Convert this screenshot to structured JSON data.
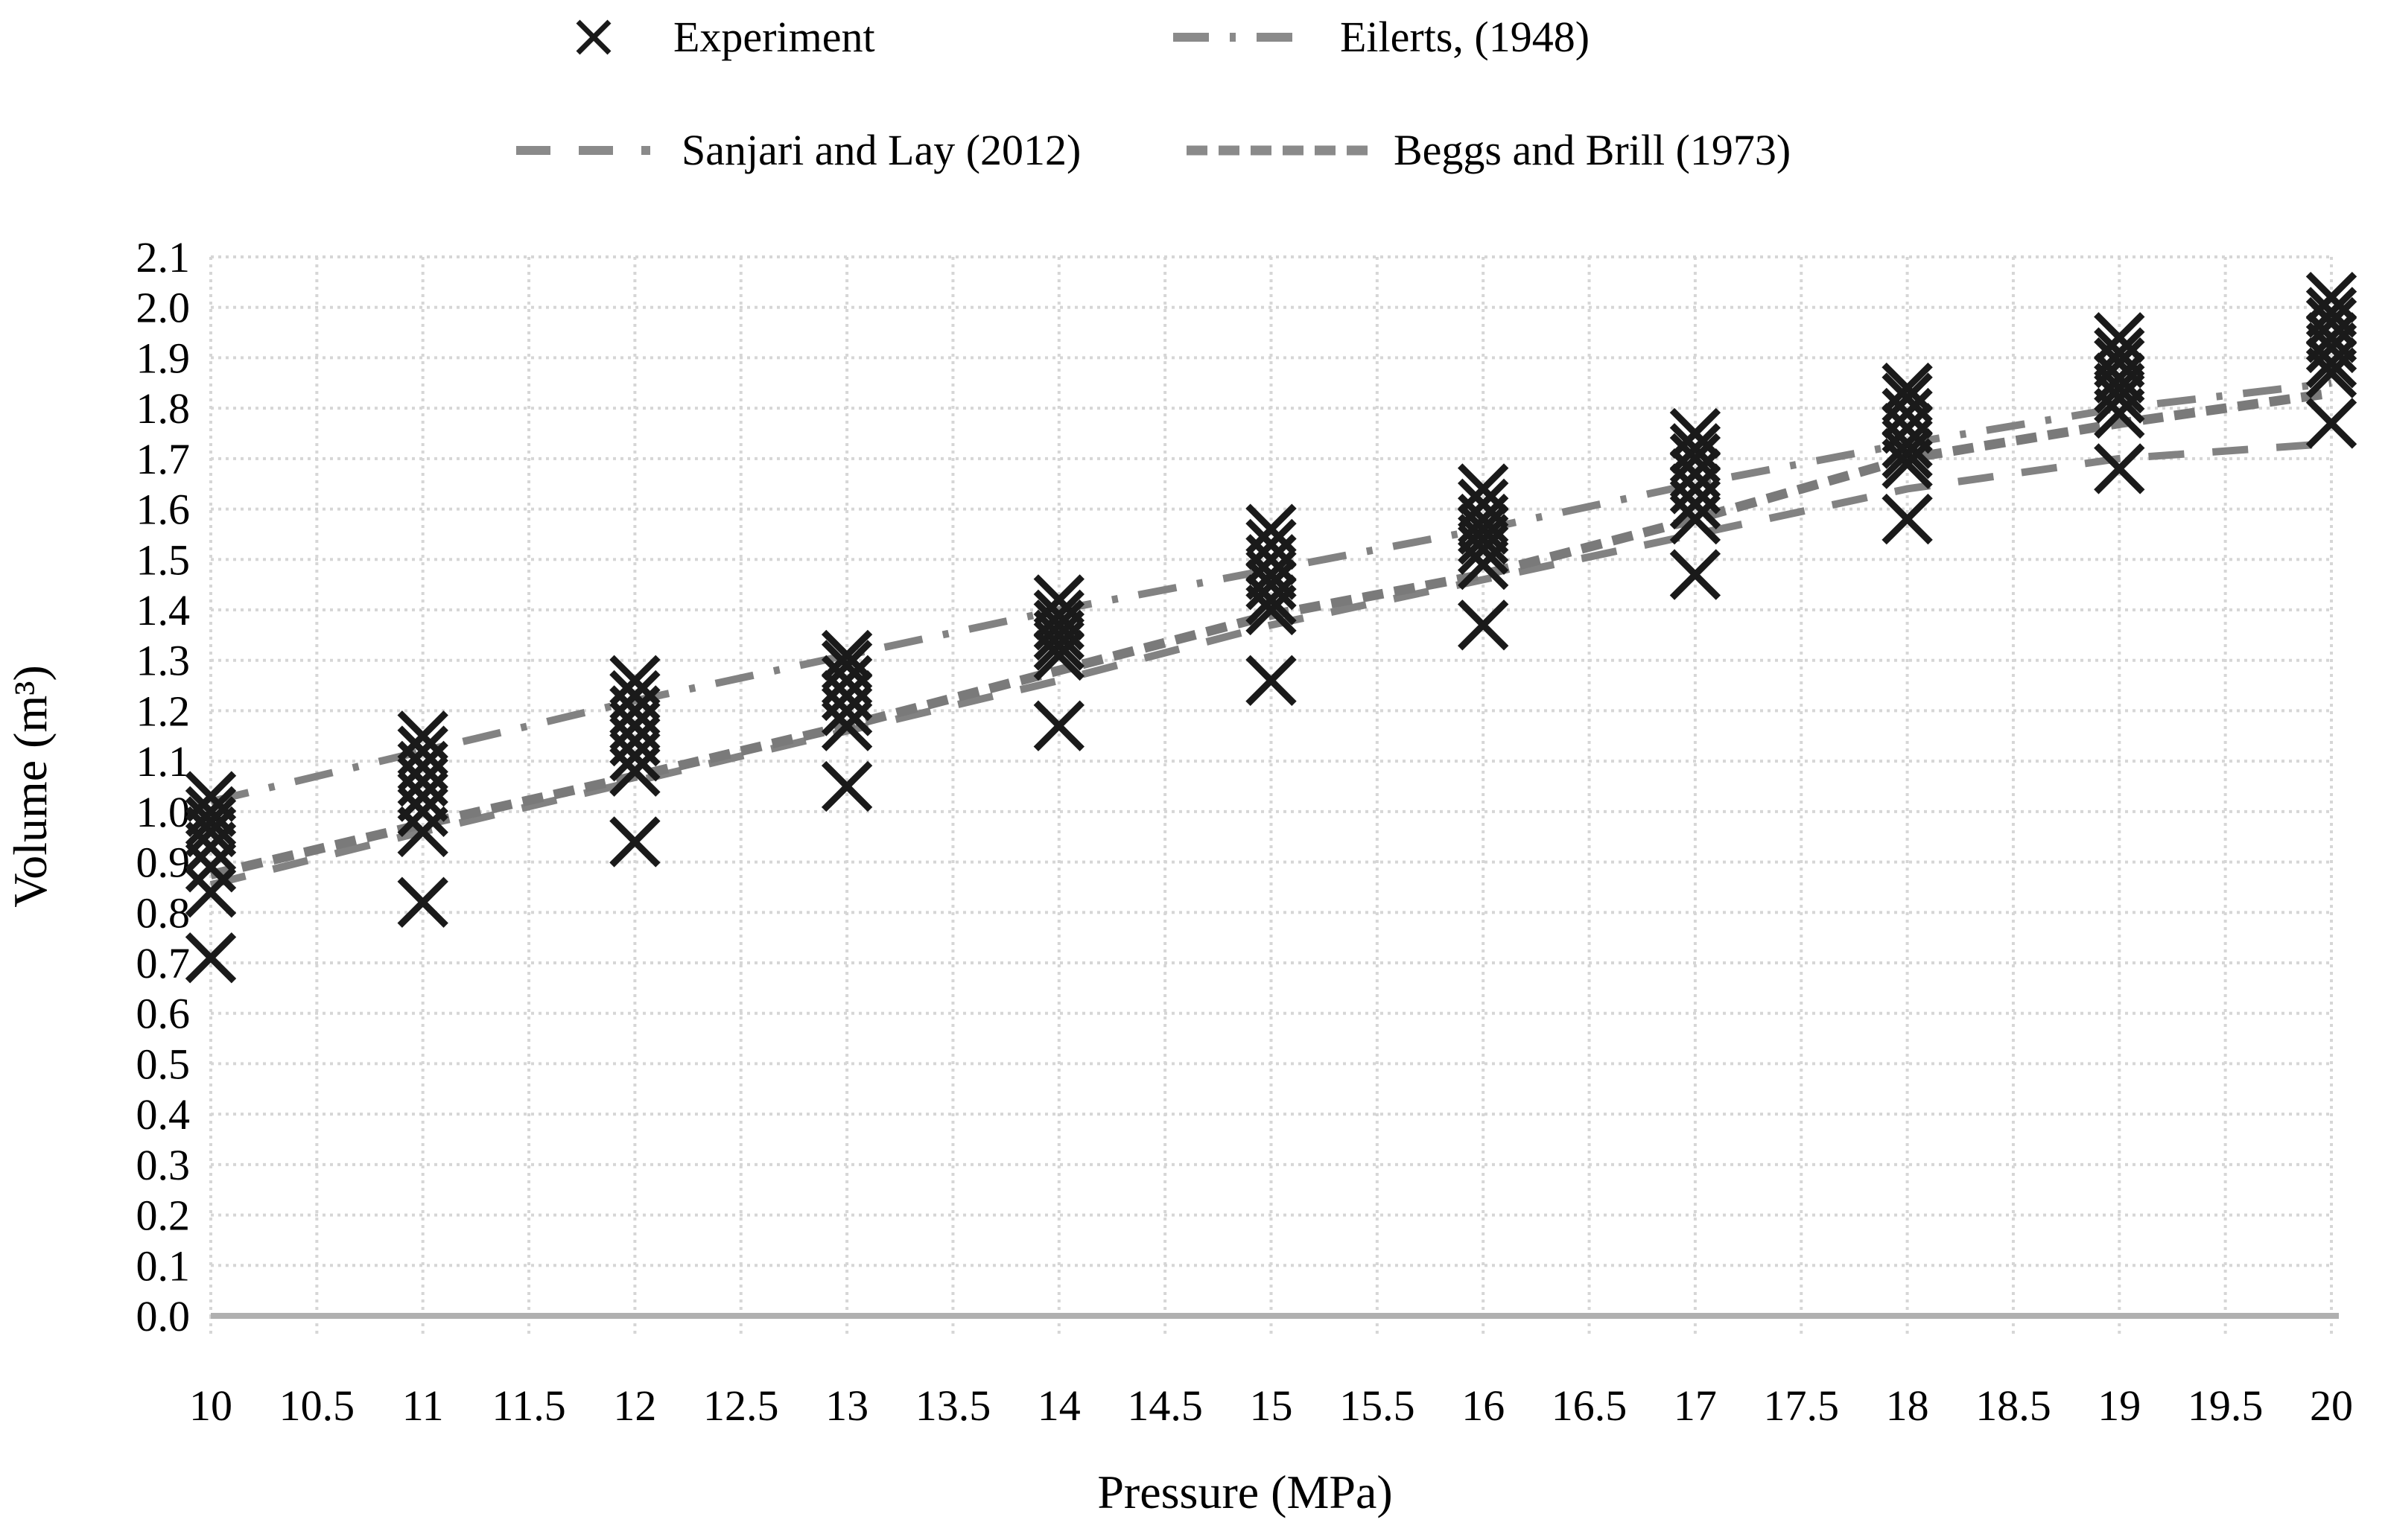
{
  "legend_position": "top",
  "axes": {
    "x_title": "Pressure (MPa)",
    "y_title": "Volume (m³)",
    "x_ticks": [
      "10",
      "10.5",
      "11",
      "11.5",
      "12",
      "12.5",
      "13",
      "13.5",
      "14",
      "14.5",
      "15",
      "15.5",
      "16",
      "16.5",
      "17",
      "17.5",
      "18",
      "18.5",
      "19",
      "19.5",
      "20"
    ],
    "y_ticks": [
      "0.0",
      "0.1",
      "0.2",
      "0.3",
      "0.4",
      "0.5",
      "0.6",
      "0.7",
      "0.8",
      "0.9",
      "1.0",
      "1.1",
      "1.2",
      "1.3",
      "1.4",
      "1.5",
      "1.6",
      "1.7",
      "1.8",
      "1.9",
      "2.0",
      "2.1"
    ]
  },
  "colors": {
    "marker": "#1a1a1a",
    "line": "#828282",
    "grid": "#d6d6d6",
    "axis": "#b0b0b0",
    "text": "#000000"
  },
  "chart_data": {
    "type": "scatter",
    "title": "",
    "xlabel": "Pressure (MPa)",
    "ylabel": "Volume (m³)",
    "xlim": [
      10,
      20
    ],
    "ylim": [
      0.0,
      2.1
    ],
    "x_tick_step": 0.5,
    "y_tick_step": 0.1,
    "grid": true,
    "legend_position": "top",
    "series": [
      {
        "name": "Experiment",
        "type": "scatter",
        "marker": "x",
        "color": "#1a1a1a",
        "groups": [
          {
            "x": 10,
            "volumes": [
              1.03,
              1.0,
              0.98,
              0.96,
              0.93,
              0.89,
              0.84,
              0.71
            ]
          },
          {
            "x": 11,
            "volumes": [
              1.15,
              1.12,
              1.09,
              1.06,
              1.03,
              1.0,
              0.96,
              0.82
            ]
          },
          {
            "x": 12,
            "volumes": [
              1.26,
              1.23,
              1.2,
              1.17,
              1.14,
              1.11,
              1.08,
              0.94
            ]
          },
          {
            "x": 13,
            "volumes": [
              1.31,
              1.29,
              1.26,
              1.23,
              1.2,
              1.17,
              1.05
            ]
          },
          {
            "x": 14,
            "volumes": [
              1.42,
              1.39,
              1.37,
              1.35,
              1.33,
              1.31,
              1.17
            ]
          },
          {
            "x": 15,
            "volumes": [
              1.56,
              1.53,
              1.5,
              1.47,
              1.45,
              1.42,
              1.4,
              1.26
            ]
          },
          {
            "x": 16,
            "volumes": [
              1.64,
              1.61,
              1.58,
              1.56,
              1.54,
              1.52,
              1.49,
              1.37
            ]
          },
          {
            "x": 17,
            "volumes": [
              1.75,
              1.72,
              1.7,
              1.67,
              1.64,
              1.61,
              1.58,
              1.47
            ]
          },
          {
            "x": 18,
            "volumes": [
              1.84,
              1.82,
              1.79,
              1.76,
              1.73,
              1.71,
              1.69,
              1.58
            ]
          },
          {
            "x": 19,
            "volumes": [
              1.94,
              1.91,
              1.89,
              1.86,
              1.84,
              1.82,
              1.79,
              1.68
            ]
          },
          {
            "x": 20,
            "volumes": [
              2.02,
              1.99,
              1.97,
              1.94,
              1.92,
              1.89,
              1.87,
              1.77
            ]
          }
        ]
      },
      {
        "name": "Eilerts, (1948)",
        "type": "line",
        "style": "dash-dot",
        "color": "#828282",
        "x": [
          10,
          11,
          12,
          13,
          14,
          15,
          16,
          17,
          18,
          19,
          20
        ],
        "y": [
          1.02,
          1.12,
          1.22,
          1.31,
          1.4,
          1.48,
          1.56,
          1.65,
          1.73,
          1.8,
          1.85
        ]
      },
      {
        "name": "Sanjari and Lay (2012)",
        "type": "line",
        "style": "long-dash",
        "color": "#828282",
        "x": [
          10,
          11,
          12,
          13,
          14,
          15,
          16,
          17,
          18,
          19,
          20
        ],
        "y": [
          0.855,
          0.96,
          1.06,
          1.16,
          1.26,
          1.37,
          1.46,
          1.55,
          1.64,
          1.7,
          1.73
        ]
      },
      {
        "name": "Beggs and Brill (1973)",
        "type": "line",
        "style": "short-dash",
        "color": "#7a7a7a",
        "x": [
          10,
          11,
          12,
          13,
          14,
          15,
          16,
          17,
          18,
          19,
          20
        ],
        "y": [
          0.875,
          0.975,
          1.07,
          1.17,
          1.28,
          1.39,
          1.47,
          1.58,
          1.7,
          1.77,
          1.83
        ]
      }
    ]
  }
}
